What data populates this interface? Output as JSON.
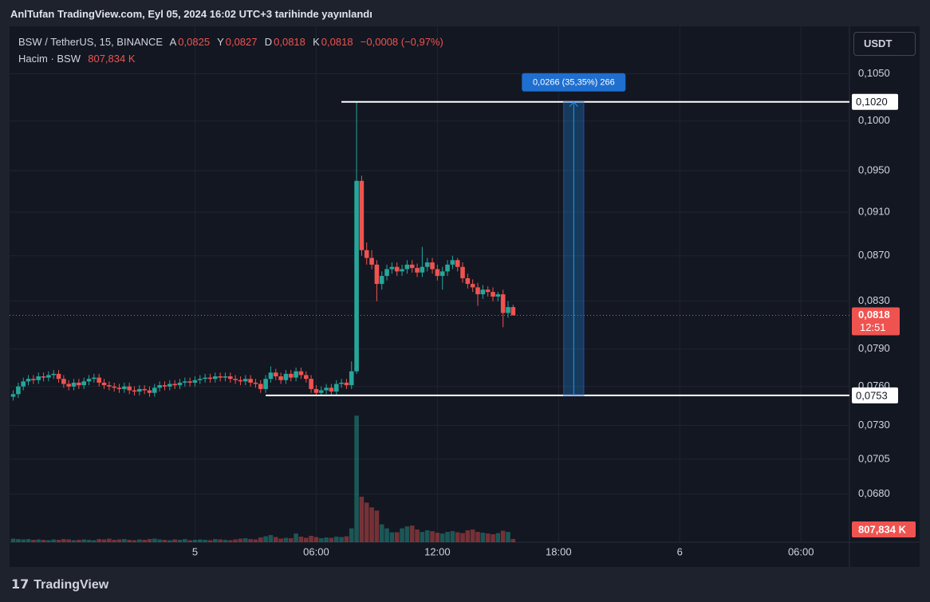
{
  "header": {
    "published": "AnlTufan TradingView.com, Eyl 05, 2024 16:02 UTC+3 tarihinde yayınlandı",
    "currency_button": "USDT",
    "footer_logo": "TradingView"
  },
  "chart_data": {
    "type": "candlestick",
    "legend": {
      "symbol": "BSW / TetherUS, 15, BINANCE",
      "open_label": "A",
      "open_value": "0,0825",
      "high_label": "Y",
      "high_value": "0,0827",
      "low_label": "D",
      "low_value": "0,0818",
      "close_label": "K",
      "close_value": "0,0818",
      "change": "−0,0008 (−0,97%)",
      "volume_label": "Hacim · BSW"
    },
    "up_color": "#26a69a",
    "down_color": "#ef5350",
    "log_scale": true,
    "grid": true,
    "xlim": [
      -9.18,
      32.4
    ],
    "xticks": [
      {
        "value": 0,
        "label": "5"
      },
      {
        "value": 6,
        "label": "06:00"
      },
      {
        "value": 12,
        "label": "12:00"
      },
      {
        "value": 18,
        "label": "18:00"
      },
      {
        "value": 24,
        "label": "6"
      },
      {
        "value": 30,
        "label": "06:00"
      }
    ],
    "ylim": [
      0.0647,
      0.1101
    ],
    "yticks": [
      {
        "value": 0.105,
        "label": "0,1050"
      },
      {
        "value": 0.1,
        "label": "0,1000"
      },
      {
        "value": 0.095,
        "label": "0,0950"
      },
      {
        "value": 0.091,
        "label": "0,0910"
      },
      {
        "value": 0.087,
        "label": "0,0870"
      },
      {
        "value": 0.083,
        "label": "0,0830"
      },
      {
        "value": 0.079,
        "label": "0,0790"
      },
      {
        "value": 0.076,
        "label": "0,0760"
      },
      {
        "value": 0.073,
        "label": "0,0730"
      },
      {
        "value": 0.0705,
        "label": "0,0705"
      },
      {
        "value": 0.068,
        "label": "0,0680"
      }
    ],
    "y2lim": [
      0,
      130000
    ],
    "x": [
      -9,
      -8.75,
      -8.5,
      -8.25,
      -8,
      -7.75,
      -7.5,
      -7.25,
      -7,
      -6.75,
      -6.5,
      -6.25,
      -6,
      -5.75,
      -5.5,
      -5.25,
      -5,
      -4.75,
      -4.5,
      -4.25,
      -4,
      -3.75,
      -3.5,
      -3.25,
      -3,
      -2.75,
      -2.5,
      -2.25,
      -2,
      -1.75,
      -1.5,
      -1.25,
      -1,
      -0.75,
      -0.5,
      -0.25,
      0,
      0.25,
      0.5,
      0.75,
      1,
      1.25,
      1.5,
      1.75,
      2,
      2.25,
      2.5,
      2.75,
      3,
      3.25,
      3.5,
      3.75,
      4,
      4.25,
      4.5,
      4.75,
      5,
      5.25,
      5.5,
      5.75,
      6,
      6.25,
      6.5,
      6.75,
      7,
      7.25,
      7.5,
      7.75,
      8,
      8.25,
      8.5,
      8.75,
      9,
      9.25,
      9.5,
      9.75,
      10,
      10.25,
      10.5,
      10.75,
      11,
      11.25,
      11.5,
      11.75,
      12,
      12.25,
      12.5,
      12.75,
      13,
      13.25,
      13.5,
      13.75,
      14,
      14.25,
      14.5,
      14.75,
      15,
      15.25,
      15.5,
      15.75
    ],
    "open": [
      0.0752,
      0.0754,
      0.076,
      0.0764,
      0.0766,
      0.0765,
      0.0768,
      0.0767,
      0.0769,
      0.077,
      0.0766,
      0.0762,
      0.076,
      0.0763,
      0.0761,
      0.0764,
      0.0766,
      0.0767,
      0.0763,
      0.0761,
      0.076,
      0.0759,
      0.0758,
      0.076,
      0.0757,
      0.0756,
      0.0758,
      0.0757,
      0.0755,
      0.0759,
      0.0761,
      0.076,
      0.0762,
      0.0761,
      0.0763,
      0.0764,
      0.0763,
      0.0765,
      0.0766,
      0.0767,
      0.0766,
      0.0768,
      0.0767,
      0.0768,
      0.0766,
      0.0765,
      0.0764,
      0.0766,
      0.0763,
      0.0762,
      0.0758,
      0.0766,
      0.0771,
      0.0768,
      0.0765,
      0.077,
      0.0767,
      0.0772,
      0.0769,
      0.0766,
      0.0758,
      0.0755,
      0.0757,
      0.0759,
      0.0756,
      0.0762,
      0.0763,
      0.0761,
      0.0772,
      0.094,
      0.0875,
      0.0868,
      0.0862,
      0.0845,
      0.0852,
      0.0858,
      0.086,
      0.0856,
      0.0858,
      0.0862,
      0.0859,
      0.0855,
      0.086,
      0.0864,
      0.0858,
      0.0852,
      0.0856,
      0.0862,
      0.0866,
      0.086,
      0.085,
      0.0845,
      0.0842,
      0.0836,
      0.084,
      0.0838,
      0.0834,
      0.0836,
      0.082,
      0.0825
    ],
    "high": [
      0.0757,
      0.0763,
      0.0767,
      0.0769,
      0.0769,
      0.0771,
      0.0771,
      0.0772,
      0.0773,
      0.0773,
      0.0769,
      0.0765,
      0.0766,
      0.0766,
      0.0767,
      0.0769,
      0.077,
      0.077,
      0.0766,
      0.0764,
      0.0763,
      0.0762,
      0.0763,
      0.0763,
      0.076,
      0.0761,
      0.0761,
      0.076,
      0.0762,
      0.0764,
      0.0764,
      0.0765,
      0.0765,
      0.0766,
      0.0767,
      0.0767,
      0.0768,
      0.0769,
      0.077,
      0.077,
      0.0771,
      0.0771,
      0.0771,
      0.0771,
      0.0769,
      0.0768,
      0.0769,
      0.0769,
      0.0766,
      0.0765,
      0.0769,
      0.0776,
      0.0774,
      0.0771,
      0.0773,
      0.0773,
      0.0775,
      0.0775,
      0.0772,
      0.0769,
      0.0761,
      0.076,
      0.0762,
      0.0762,
      0.0765,
      0.0766,
      0.0766,
      0.078,
      0.102,
      0.0945,
      0.0882,
      0.0875,
      0.0866,
      0.0856,
      0.0862,
      0.0864,
      0.0864,
      0.0862,
      0.0866,
      0.0866,
      0.0863,
      0.0878,
      0.0868,
      0.0868,
      0.0862,
      0.086,
      0.0866,
      0.087,
      0.0868,
      0.0864,
      0.0854,
      0.0849,
      0.0846,
      0.0844,
      0.0843,
      0.0842,
      0.0838,
      0.084,
      0.083,
      0.0827
    ],
    "low": [
      0.0749,
      0.0751,
      0.0757,
      0.0761,
      0.0762,
      0.0762,
      0.0764,
      0.0764,
      0.0766,
      0.0763,
      0.0759,
      0.0757,
      0.0757,
      0.0758,
      0.0758,
      0.0761,
      0.0763,
      0.076,
      0.0758,
      0.0757,
      0.0756,
      0.0755,
      0.0755,
      0.0754,
      0.0753,
      0.0753,
      0.0754,
      0.0752,
      0.0752,
      0.0756,
      0.0757,
      0.0757,
      0.0758,
      0.0758,
      0.076,
      0.076,
      0.076,
      0.0762,
      0.0763,
      0.0763,
      0.0763,
      0.0764,
      0.0764,
      0.0763,
      0.0762,
      0.0761,
      0.0761,
      0.076,
      0.0759,
      0.0755,
      0.0755,
      0.0763,
      0.0765,
      0.0762,
      0.0762,
      0.0764,
      0.0764,
      0.0766,
      0.0763,
      0.0755,
      0.0753,
      0.0753,
      0.0754,
      0.0753,
      0.0753,
      0.0759,
      0.0758,
      0.0758,
      0.077,
      0.087,
      0.0862,
      0.0858,
      0.083,
      0.084,
      0.0848,
      0.0854,
      0.0852,
      0.0852,
      0.0854,
      0.0855,
      0.0851,
      0.0851,
      0.0856,
      0.0854,
      0.0848,
      0.084,
      0.0852,
      0.0858,
      0.0856,
      0.0846,
      0.0841,
      0.0838,
      0.0826,
      0.0832,
      0.0834,
      0.083,
      0.083,
      0.0808,
      0.0816,
      0.0818
    ],
    "close": [
      0.0754,
      0.076,
      0.0764,
      0.0766,
      0.0765,
      0.0768,
      0.0767,
      0.0769,
      0.077,
      0.0766,
      0.0762,
      0.076,
      0.0763,
      0.0761,
      0.0764,
      0.0766,
      0.0767,
      0.0763,
      0.0761,
      0.076,
      0.0759,
      0.0758,
      0.076,
      0.0757,
      0.0756,
      0.0758,
      0.0757,
      0.0755,
      0.0759,
      0.0761,
      0.076,
      0.0762,
      0.0761,
      0.0763,
      0.0764,
      0.0763,
      0.0765,
      0.0766,
      0.0767,
      0.0766,
      0.0768,
      0.0767,
      0.0768,
      0.0766,
      0.0765,
      0.0764,
      0.0766,
      0.0763,
      0.0762,
      0.0758,
      0.0766,
      0.0771,
      0.0768,
      0.0765,
      0.077,
      0.0767,
      0.0772,
      0.0769,
      0.0766,
      0.0758,
      0.0755,
      0.0757,
      0.0759,
      0.0756,
      0.0762,
      0.0763,
      0.0761,
      0.0772,
      0.094,
      0.0875,
      0.0868,
      0.0862,
      0.0845,
      0.0852,
      0.0858,
      0.086,
      0.0856,
      0.0858,
      0.0862,
      0.0859,
      0.0855,
      0.086,
      0.0864,
      0.0858,
      0.0852,
      0.0856,
      0.0862,
      0.0866,
      0.086,
      0.085,
      0.0845,
      0.0842,
      0.0836,
      0.084,
      0.0838,
      0.0834,
      0.0836,
      0.082,
      0.0825,
      0.0818
    ],
    "volume": [
      900,
      800,
      700,
      800,
      600,
      700,
      600,
      500,
      700,
      600,
      800,
      700,
      500,
      600,
      700,
      600,
      500,
      800,
      700,
      900,
      600,
      700,
      800,
      600,
      500,
      700,
      600,
      800,
      900,
      700,
      600,
      500,
      700,
      600,
      800,
      500,
      600,
      700,
      600,
      500,
      800,
      700,
      600,
      500,
      700,
      900,
      1000,
      800,
      700,
      1200,
      1500,
      1800,
      1300,
      900,
      1100,
      1000,
      2200,
      1400,
      1100,
      1600,
      1300,
      1000,
      1200,
      1100,
      1400,
      1300,
      1500,
      3500,
      32000,
      11500,
      10000,
      8800,
      8000,
      4500,
      3500,
      2500,
      2500,
      3500,
      4000,
      4200,
      3200,
      2600,
      3000,
      2800,
      2400,
      2200,
      2600,
      2800,
      2500,
      2300,
      3000,
      3200,
      2600,
      2400,
      2200,
      2000,
      2300,
      2900,
      2600,
      807.834
    ],
    "last_price": {
      "value": 0.0818,
      "label": "0,0818",
      "countdown": "12:51"
    },
    "last_volume": {
      "value": 807.834,
      "label": "807,834 K"
    },
    "hlines": [
      {
        "value": 0.102,
        "label": "0,1020",
        "start": 7.25
      },
      {
        "value": 0.0753,
        "label": "0,0753",
        "start": 3.5
      }
    ],
    "measure": {
      "x": [
        18.25,
        19.25
      ],
      "y": [
        0.0753,
        0.102
      ],
      "label": "0,0266 (35,35%) 266"
    }
  }
}
